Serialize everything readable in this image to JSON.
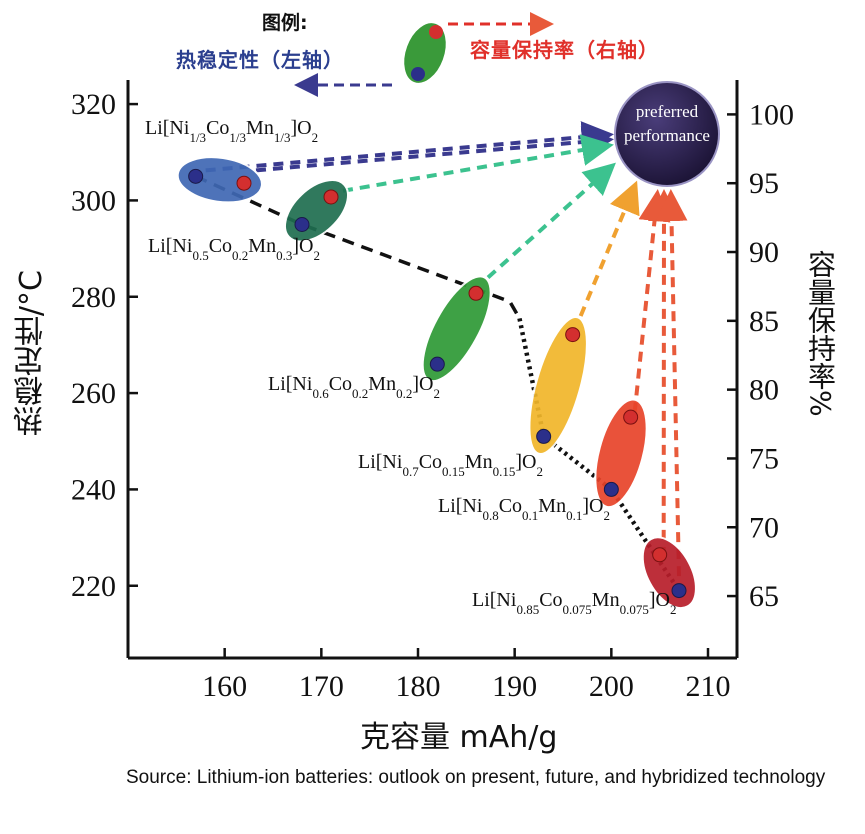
{
  "legend": {
    "title": "图例:",
    "left_axis_label": "热稳定性（左轴）",
    "right_axis_label": "容量保持率（右轴）",
    "colors": {
      "thermal": "#2b3f8f",
      "retention": "#e0302a"
    }
  },
  "preferred": {
    "line1": "preferred",
    "line2": "performance",
    "color": "#231a40"
  },
  "source": "Source: Lithium-ion batteries: outlook on present, future, and hybridized technology",
  "chart_data": {
    "type": "scatter",
    "xlabel": "克容量 mAh/g",
    "ylabel": "热稳定性/°C",
    "ylabel_right": "容量保持率%",
    "xlim": [
      150,
      213
    ],
    "ylim": [
      205,
      325
    ],
    "ylim_right": [
      60.5,
      102.5
    ],
    "xticks": [
      160,
      170,
      180,
      190,
      200,
      210
    ],
    "yticks": [
      220,
      240,
      260,
      280,
      300,
      320
    ],
    "yticks_right": [
      65,
      70,
      75,
      80,
      85,
      90,
      95,
      100
    ],
    "grid": false,
    "materials": [
      {
        "label": "Li[Ni1/3Co1/3Mn1/3]O2",
        "parts": [
          [
            "Li[Ni",
            ""
          ],
          [
            "1/3",
            "sub"
          ],
          [
            "Co",
            ""
          ],
          [
            "1/3",
            "sub"
          ],
          [
            "Mn",
            ""
          ],
          [
            "1/3",
            "sub"
          ],
          [
            "]O",
            ""
          ],
          [
            "2",
            "sub"
          ]
        ],
        "capacity_thermal": 157,
        "thermal_stability": 305,
        "capacity_retention_x": 162,
        "capacity_retention": 95,
        "color": "#3f68b4"
      },
      {
        "label": "Li[Ni0.5Co0.2Mn0.3]O2",
        "parts": [
          [
            "Li[Ni",
            ""
          ],
          [
            "0.5",
            "sub"
          ],
          [
            "Co",
            ""
          ],
          [
            "0.2",
            "sub"
          ],
          [
            "Mn",
            ""
          ],
          [
            "0.3",
            "sub"
          ],
          [
            "]O",
            ""
          ],
          [
            "2",
            "sub"
          ]
        ],
        "capacity_thermal": 168,
        "thermal_stability": 295,
        "capacity_retention_x": 171,
        "capacity_retention": 94,
        "color": "#1f6e50"
      },
      {
        "label": "Li[Ni0.6Co0.2Mn0.2]O2",
        "parts": [
          [
            "Li[Ni",
            ""
          ],
          [
            "0.6",
            "sub"
          ],
          [
            "Co",
            ""
          ],
          [
            "0.2",
            "sub"
          ],
          [
            "Mn",
            ""
          ],
          [
            "0.2",
            "sub"
          ],
          [
            "]O",
            ""
          ],
          [
            "2",
            "sub"
          ]
        ],
        "capacity_thermal": 182,
        "thermal_stability": 266,
        "capacity_retention_x": 186,
        "capacity_retention": 87,
        "color": "#2e9a36"
      },
      {
        "label": "Li[Ni0.7Co0.15Mn0.15]O2",
        "parts": [
          [
            "Li[Ni",
            ""
          ],
          [
            "0.7",
            "sub"
          ],
          [
            "Co",
            ""
          ],
          [
            "0.15",
            "sub"
          ],
          [
            "Mn",
            ""
          ],
          [
            "0.15",
            "sub"
          ],
          [
            "]O",
            ""
          ],
          [
            "2",
            "sub"
          ]
        ],
        "capacity_thermal": 193,
        "thermal_stability": 251,
        "capacity_retention_x": 196,
        "capacity_retention": 84,
        "color": "#f1b62a"
      },
      {
        "label": "Li[Ni0.8Co0.1Mn0.1]O2",
        "parts": [
          [
            "Li[Ni",
            ""
          ],
          [
            "0.8",
            "sub"
          ],
          [
            "Co",
            ""
          ],
          [
            "0.1",
            "sub"
          ],
          [
            "Mn",
            ""
          ],
          [
            "0.1",
            "sub"
          ],
          [
            "]O",
            ""
          ],
          [
            "2",
            "sub"
          ]
        ],
        "capacity_thermal": 200,
        "thermal_stability": 240,
        "capacity_retention_x": 202,
        "capacity_retention": 78,
        "color": "#e8442a"
      },
      {
        "label": "Li[Ni0.85Co0.075Mn0.075]O2",
        "parts": [
          [
            "Li[Ni",
            ""
          ],
          [
            "0.85",
            "sub"
          ],
          [
            "Co",
            ""
          ],
          [
            "0.075",
            "sub"
          ],
          [
            "Mn",
            ""
          ],
          [
            "0.075",
            "sub"
          ],
          [
            "]O",
            ""
          ],
          [
            "2",
            "sub"
          ]
        ],
        "capacity_thermal": 207,
        "thermal_stability": 219,
        "capacity_retention_x": 205,
        "capacity_retention": 68,
        "color": "#b81e2a"
      }
    ]
  }
}
